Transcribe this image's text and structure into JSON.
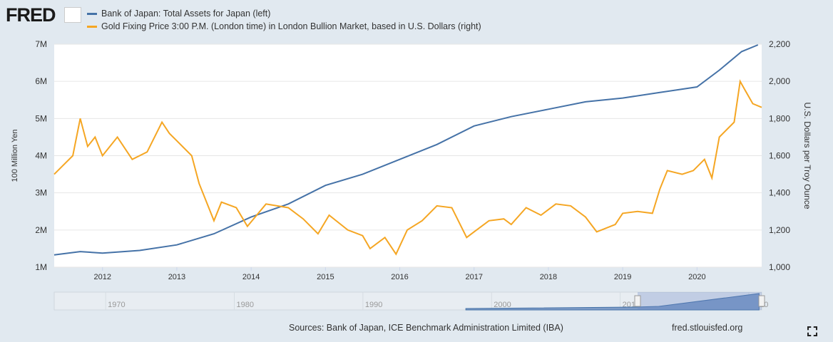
{
  "header": {
    "logo": "FRED"
  },
  "footer": {
    "sources": "Sources: Bank of Japan, ICE Benchmark Administration Limited (IBA)",
    "site": "fred.stlouisfed.org"
  },
  "navigator": {
    "ticks": [
      "1970",
      "1980",
      "1990",
      "2000",
      "2010",
      "2020"
    ]
  },
  "colors": {
    "boj": "#4572a7",
    "gold": "#f5a623"
  },
  "chart_data": {
    "type": "line",
    "xlim": [
      2011.35,
      2020.87
    ],
    "x_ticks": [
      "2012",
      "2013",
      "2014",
      "2015",
      "2016",
      "2017",
      "2018",
      "2019",
      "2020"
    ],
    "ylabel_left": "100 Million Yen",
    "ylim_left": [
      1000000,
      7000000
    ],
    "left_ticks": [
      "1M",
      "2M",
      "3M",
      "4M",
      "5M",
      "6M",
      "7M"
    ],
    "ylabel_right": "U.S. Dollars per Troy Ounce",
    "ylim_right": [
      1000,
      2200
    ],
    "right_ticks": [
      "1,000",
      "1,200",
      "1,400",
      "1,600",
      "1,800",
      "2,000",
      "2,200"
    ],
    "grid": true,
    "legend": "top-left",
    "series": [
      {
        "name": "Bank of Japan: Total Assets for Japan (left)",
        "axis": "left",
        "x": [
          2011.35,
          2011.7,
          2012.0,
          2012.5,
          2013.0,
          2013.5,
          2014.0,
          2014.5,
          2015.0,
          2015.5,
          2016.0,
          2016.5,
          2017.0,
          2017.5,
          2018.0,
          2018.5,
          2019.0,
          2019.5,
          2020.0,
          2020.3,
          2020.6,
          2020.82
        ],
        "y": [
          1330000,
          1420000,
          1380000,
          1450000,
          1600000,
          1900000,
          2350000,
          2700000,
          3200000,
          3500000,
          3900000,
          4300000,
          4800000,
          5050000,
          5250000,
          5450000,
          5550000,
          5700000,
          5850000,
          6300000,
          6800000,
          6980000
        ]
      },
      {
        "name": "Gold Fixing Price 3:00 P.M. (London time) in London Bullion Market, based in U.S. Dollars (right)",
        "axis": "right",
        "x": [
          2011.35,
          2011.6,
          2011.7,
          2011.8,
          2011.9,
          2012.0,
          2012.2,
          2012.4,
          2012.6,
          2012.8,
          2012.9,
          2013.0,
          2013.2,
          2013.3,
          2013.5,
          2013.6,
          2013.8,
          2013.95,
          2014.2,
          2014.5,
          2014.7,
          2014.9,
          2015.05,
          2015.3,
          2015.5,
          2015.6,
          2015.8,
          2015.95,
          2016.1,
          2016.3,
          2016.5,
          2016.7,
          2016.9,
          2017.0,
          2017.2,
          2017.4,
          2017.5,
          2017.7,
          2017.9,
          2018.1,
          2018.3,
          2018.5,
          2018.65,
          2018.9,
          2019.0,
          2019.2,
          2019.4,
          2019.5,
          2019.6,
          2019.8,
          2019.95,
          2020.1,
          2020.2,
          2020.3,
          2020.5,
          2020.58,
          2020.65,
          2020.75,
          2020.87
        ],
        "y": [
          1500,
          1600,
          1800,
          1650,
          1700,
          1600,
          1700,
          1580,
          1620,
          1780,
          1720,
          1680,
          1600,
          1450,
          1250,
          1350,
          1320,
          1220,
          1340,
          1320,
          1260,
          1180,
          1280,
          1200,
          1170,
          1100,
          1160,
          1070,
          1200,
          1250,
          1330,
          1320,
          1160,
          1190,
          1250,
          1260,
          1230,
          1320,
          1280,
          1340,
          1330,
          1270,
          1190,
          1230,
          1290,
          1300,
          1290,
          1420,
          1520,
          1500,
          1520,
          1580,
          1480,
          1700,
          1780,
          2000,
          1950,
          1880,
          1860
        ]
      }
    ]
  }
}
